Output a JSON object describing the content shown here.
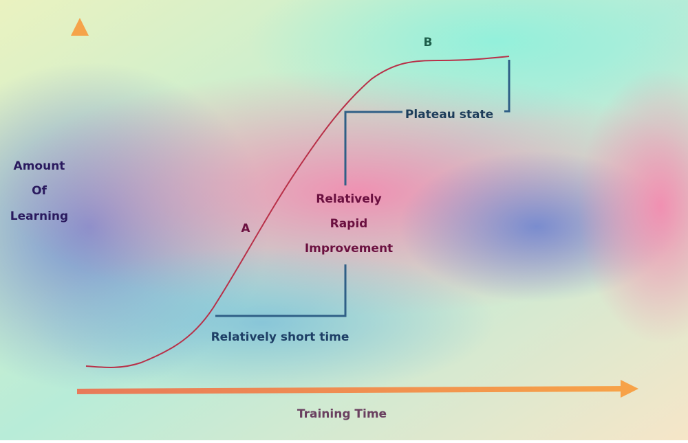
{
  "y_axis_label": {
    "lines": [
      "Amount",
      "Of",
      "Learning"
    ]
  },
  "x_axis_label": "Training Time",
  "points": [
    {
      "label": "A"
    },
    {
      "label": "B"
    }
  ],
  "annotations": {
    "plateau": "Plateau state",
    "rapid": {
      "lines": [
        "Relatively",
        "Rapid",
        "Improvement"
      ]
    },
    "short_time": "Relatively short time"
  }
}
